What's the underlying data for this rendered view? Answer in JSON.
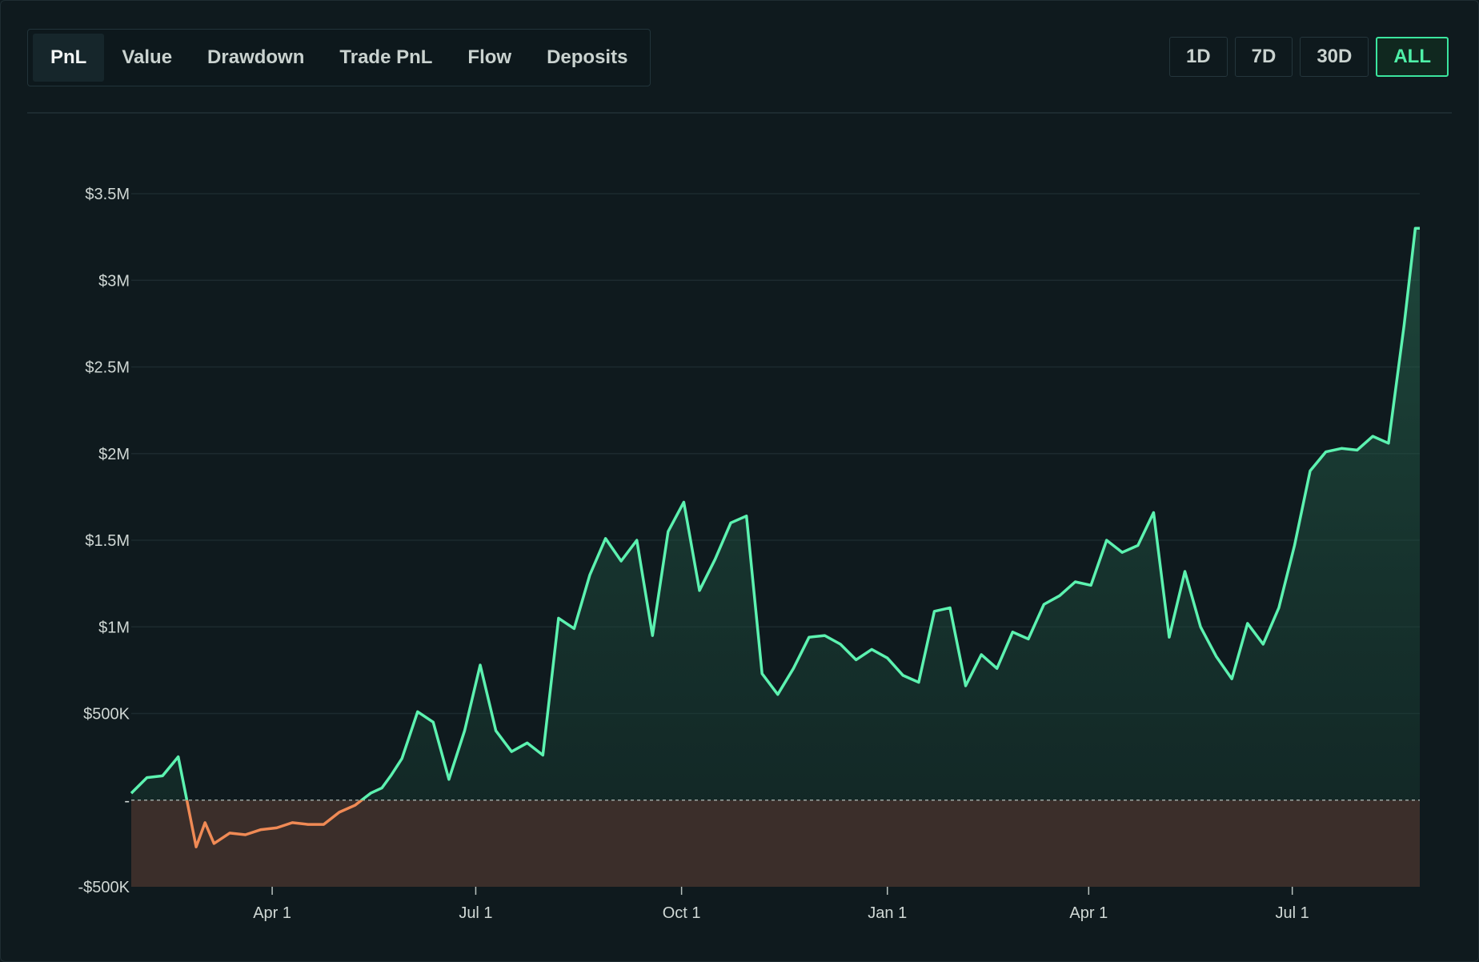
{
  "tabs": [
    "PnL",
    "Value",
    "Drawdown",
    "Trade PnL",
    "Flow",
    "Deposits"
  ],
  "active_tab": "PnL",
  "ranges": [
    "1D",
    "7D",
    "30D",
    "ALL"
  ],
  "active_range": "ALL",
  "colors": {
    "positive_line": "#5cf2b0",
    "negative_line": "#f08a55",
    "negative_fill": "#3b2e2a",
    "accent": "#3be59e"
  },
  "chart_data": {
    "type": "area",
    "title": "",
    "xlabel": "",
    "ylabel": "",
    "ylim": [
      -500000,
      3500000
    ],
    "yticks": [
      {
        "value": 3500000,
        "label": "$3.5M"
      },
      {
        "value": 3000000,
        "label": "$3M"
      },
      {
        "value": 2500000,
        "label": "$2.5M"
      },
      {
        "value": 2000000,
        "label": "$2M"
      },
      {
        "value": 1500000,
        "label": "$1.5M"
      },
      {
        "value": 1000000,
        "label": "$1M"
      },
      {
        "value": 500000,
        "label": "$500K"
      },
      {
        "value": 0,
        "label": "-"
      },
      {
        "value": -500000,
        "label": "-$500K"
      }
    ],
    "xticks": [
      {
        "date": "2024-04-01",
        "label": "Apr 1"
      },
      {
        "date": "2024-07-01",
        "label": "Jul 1"
      },
      {
        "date": "2024-10-01",
        "label": "Oct 1"
      },
      {
        "date": "2025-01-01",
        "label": "Jan 1"
      },
      {
        "date": "2025-04-01",
        "label": "Apr 1"
      },
      {
        "date": "2025-07-01",
        "label": "Jul 1"
      }
    ],
    "xlim": [
      "2024-01-29",
      "2025-08-27"
    ],
    "grid": true,
    "series": [
      {
        "x": [
          "2024-01-29",
          "2024-02-05",
          "2024-02-12",
          "2024-02-19",
          "2024-02-27",
          "2024-03-02",
          "2024-03-06",
          "2024-03-13",
          "2024-03-20",
          "2024-03-27",
          "2024-04-03",
          "2024-04-10",
          "2024-04-17",
          "2024-04-24",
          "2024-05-01",
          "2024-05-08",
          "2024-05-15",
          "2024-05-20",
          "2024-05-24",
          "2024-05-29",
          "2024-06-05",
          "2024-06-12",
          "2024-06-19",
          "2024-06-26",
          "2024-07-03",
          "2024-07-10",
          "2024-07-17",
          "2024-07-24",
          "2024-07-31",
          "2024-08-07",
          "2024-08-14",
          "2024-08-21",
          "2024-08-28",
          "2024-09-04",
          "2024-09-11",
          "2024-09-18",
          "2024-09-25",
          "2024-10-02",
          "2024-10-09",
          "2024-10-16",
          "2024-10-23",
          "2024-10-30",
          "2024-11-06",
          "2024-11-13",
          "2024-11-20",
          "2024-11-27",
          "2024-12-04",
          "2024-12-11",
          "2024-12-18",
          "2024-12-25",
          "2025-01-01",
          "2025-01-08",
          "2025-01-15",
          "2025-01-22",
          "2025-01-29",
          "2025-02-05",
          "2025-02-12",
          "2025-02-19",
          "2025-02-26",
          "2025-03-05",
          "2025-03-12",
          "2025-03-19",
          "2025-03-26",
          "2025-04-02",
          "2025-04-09",
          "2025-04-16",
          "2025-04-23",
          "2025-04-30",
          "2025-05-07",
          "2025-05-14",
          "2025-05-21",
          "2025-05-28",
          "2025-06-04",
          "2025-06-11",
          "2025-06-18",
          "2025-06-25",
          "2025-07-02",
          "2025-07-09",
          "2025-07-16",
          "2025-07-23",
          "2025-07-30",
          "2025-08-06",
          "2025-08-13",
          "2025-08-20",
          "2025-08-25",
          "2025-08-27"
        ],
        "values": [
          40000,
          130000,
          140000,
          250000,
          -270000,
          -130000,
          -250000,
          -190000,
          -200000,
          -170000,
          -160000,
          -130000,
          -140000,
          -140000,
          -70000,
          -30000,
          40000,
          70000,
          140000,
          240000,
          510000,
          450000,
          120000,
          400000,
          780000,
          400000,
          280000,
          330000,
          260000,
          1050000,
          990000,
          1300000,
          1510000,
          1380000,
          1500000,
          950000,
          1550000,
          1720000,
          1210000,
          1390000,
          1600000,
          1640000,
          730000,
          610000,
          760000,
          940000,
          950000,
          900000,
          810000,
          870000,
          820000,
          720000,
          680000,
          1090000,
          1110000,
          660000,
          840000,
          760000,
          970000,
          930000,
          1130000,
          1180000,
          1260000,
          1240000,
          1500000,
          1430000,
          1470000,
          1660000,
          940000,
          1320000,
          1000000,
          830000,
          700000,
          1020000,
          900000,
          1110000,
          1470000,
          1900000,
          2010000,
          2030000,
          2020000,
          2100000,
          2060000,
          2740000,
          3300000,
          3300000
        ]
      }
    ]
  }
}
